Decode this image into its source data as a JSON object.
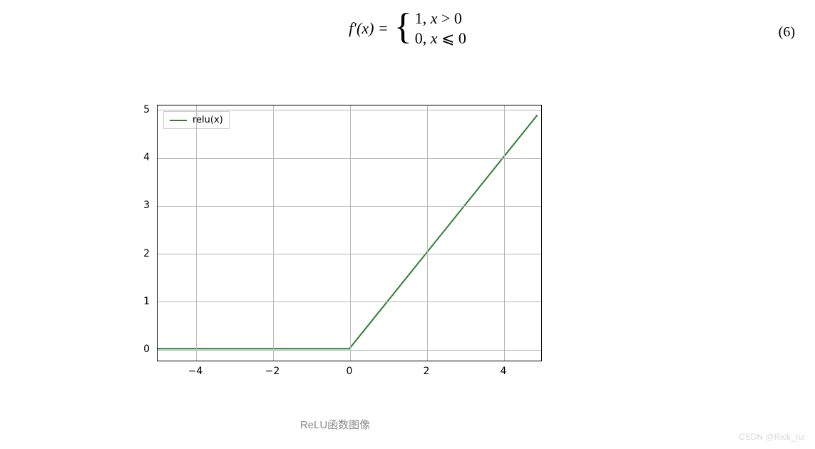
{
  "equation": {
    "lhs": "f′(x) =",
    "case1_value": "1,",
    "case1_cond_var": "x",
    "case1_cond_op": " > 0",
    "case2_value": "0,",
    "case2_cond_var": "x",
    "case2_cond_op": " ⩽ 0",
    "number": "(6)"
  },
  "chart": {
    "type": "line",
    "legend_label": "relu(x)",
    "series_color": "#2e7d32",
    "line_width": 2,
    "background_color": "#ffffff",
    "grid_color": "#b8b8b8",
    "border_color": "#000000",
    "label_fontsize": 14,
    "xlim": [
      -5,
      5
    ],
    "ylim": [
      -0.25,
      5.1
    ],
    "xticks": [
      -4,
      -2,
      0,
      2,
      4
    ],
    "yticks": [
      0,
      1,
      2,
      3,
      4,
      5
    ],
    "series": [
      {
        "x": -5,
        "y": 0
      },
      {
        "x": 0,
        "y": 0
      },
      {
        "x": 4.9,
        "y": 4.9
      }
    ]
  },
  "caption": "ReLU函数图像",
  "watermark": "CSDN @Rick_rui"
}
